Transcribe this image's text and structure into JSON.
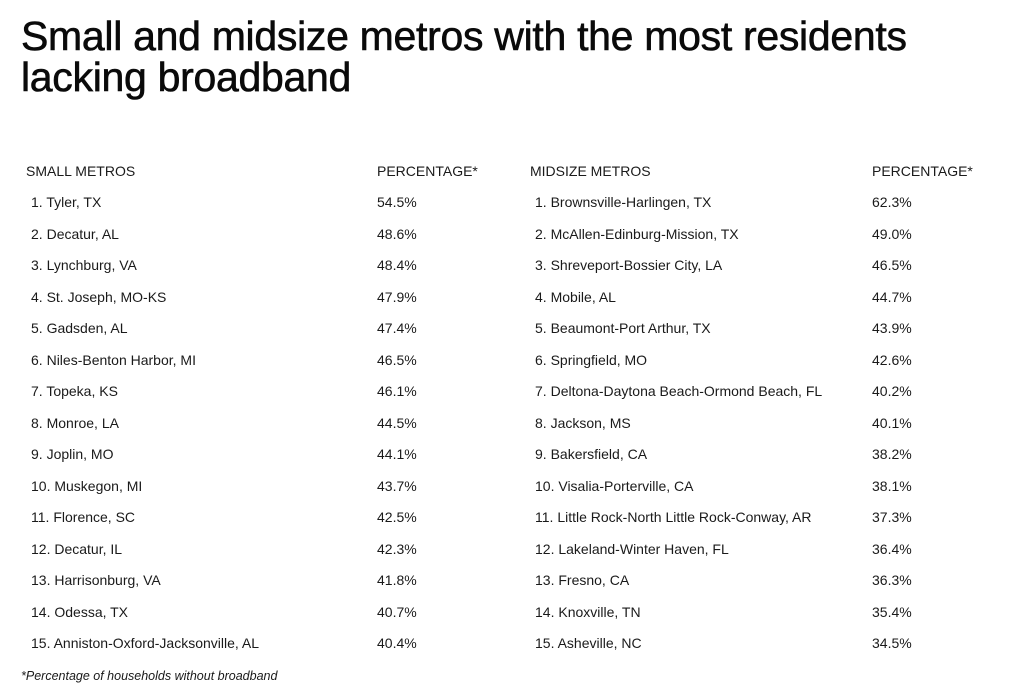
{
  "title": {
    "line1": "Small and midsize metros with the most residents",
    "line2": "lacking broadband"
  },
  "small_metros": {
    "header_name": "SMALL METROS",
    "header_pct": "PERCENTAGE*",
    "rows": [
      {
        "rank": "1.",
        "name": "Tyler, TX",
        "pct": "54.5%"
      },
      {
        "rank": "2.",
        "name": "Decatur, AL",
        "pct": "48.6%"
      },
      {
        "rank": "3.",
        "name": "Lynchburg, VA",
        "pct": "48.4%"
      },
      {
        "rank": "4.",
        "name": "St. Joseph, MO-KS",
        "pct": "47.9%"
      },
      {
        "rank": "5.",
        "name": "Gadsden, AL",
        "pct": "47.4%"
      },
      {
        "rank": "6.",
        "name": "Niles-Benton Harbor, MI",
        "pct": "46.5%"
      },
      {
        "rank": "7.",
        "name": "Topeka, KS",
        "pct": "46.1%"
      },
      {
        "rank": "8.",
        "name": "Monroe, LA",
        "pct": "44.5%"
      },
      {
        "rank": "9.",
        "name": "Joplin, MO",
        "pct": "44.1%"
      },
      {
        "rank": "10.",
        "name": "Muskegon, MI",
        "pct": "43.7%"
      },
      {
        "rank": "11.",
        "name": "Florence, SC",
        "pct": "42.5%"
      },
      {
        "rank": "12.",
        "name": "Decatur, IL",
        "pct": "42.3%"
      },
      {
        "rank": "13.",
        "name": "Harrisonburg, VA",
        "pct": "41.8%"
      },
      {
        "rank": "14.",
        "name": "Odessa, TX",
        "pct": "40.7%"
      },
      {
        "rank": "15.",
        "name": "Anniston-Oxford-Jacksonville, AL",
        "pct": "40.4%"
      }
    ]
  },
  "midsize_metros": {
    "header_name": "MIDSIZE METROS",
    "header_pct": "PERCENTAGE*",
    "rows": [
      {
        "rank": "1.",
        "name": "Brownsville-Harlingen, TX",
        "pct": "62.3%"
      },
      {
        "rank": "2.",
        "name": "McAllen-Edinburg-Mission, TX",
        "pct": "49.0%"
      },
      {
        "rank": "3.",
        "name": "Shreveport-Bossier City, LA",
        "pct": "46.5%"
      },
      {
        "rank": "4.",
        "name": "Mobile, AL",
        "pct": "44.7%"
      },
      {
        "rank": "5.",
        "name": "Beaumont-Port Arthur, TX",
        "pct": "43.9%"
      },
      {
        "rank": "6.",
        "name": "Springfield, MO",
        "pct": "42.6%"
      },
      {
        "rank": "7.",
        "name": "Deltona-Daytona Beach-Ormond Beach, FL",
        "pct": "40.2%"
      },
      {
        "rank": "8.",
        "name": "Jackson, MS",
        "pct": "40.1%"
      },
      {
        "rank": "9.",
        "name": "Bakersfield, CA",
        "pct": "38.2%"
      },
      {
        "rank": "10.",
        "name": "Visalia-Porterville, CA",
        "pct": "38.1%"
      },
      {
        "rank": "11.",
        "name": "Little Rock-North Little Rock-Conway, AR",
        "pct": "37.3%"
      },
      {
        "rank": "12.",
        "name": "Lakeland-Winter Haven, FL",
        "pct": "36.4%"
      },
      {
        "rank": "13.",
        "name": "Fresno, CA",
        "pct": "36.3%"
      },
      {
        "rank": "14.",
        "name": "Knoxville, TN",
        "pct": "35.4%"
      },
      {
        "rank": "15.",
        "name": "Asheville, NC",
        "pct": "34.5%"
      }
    ]
  },
  "footnote": "*Percentage of households without broadband"
}
